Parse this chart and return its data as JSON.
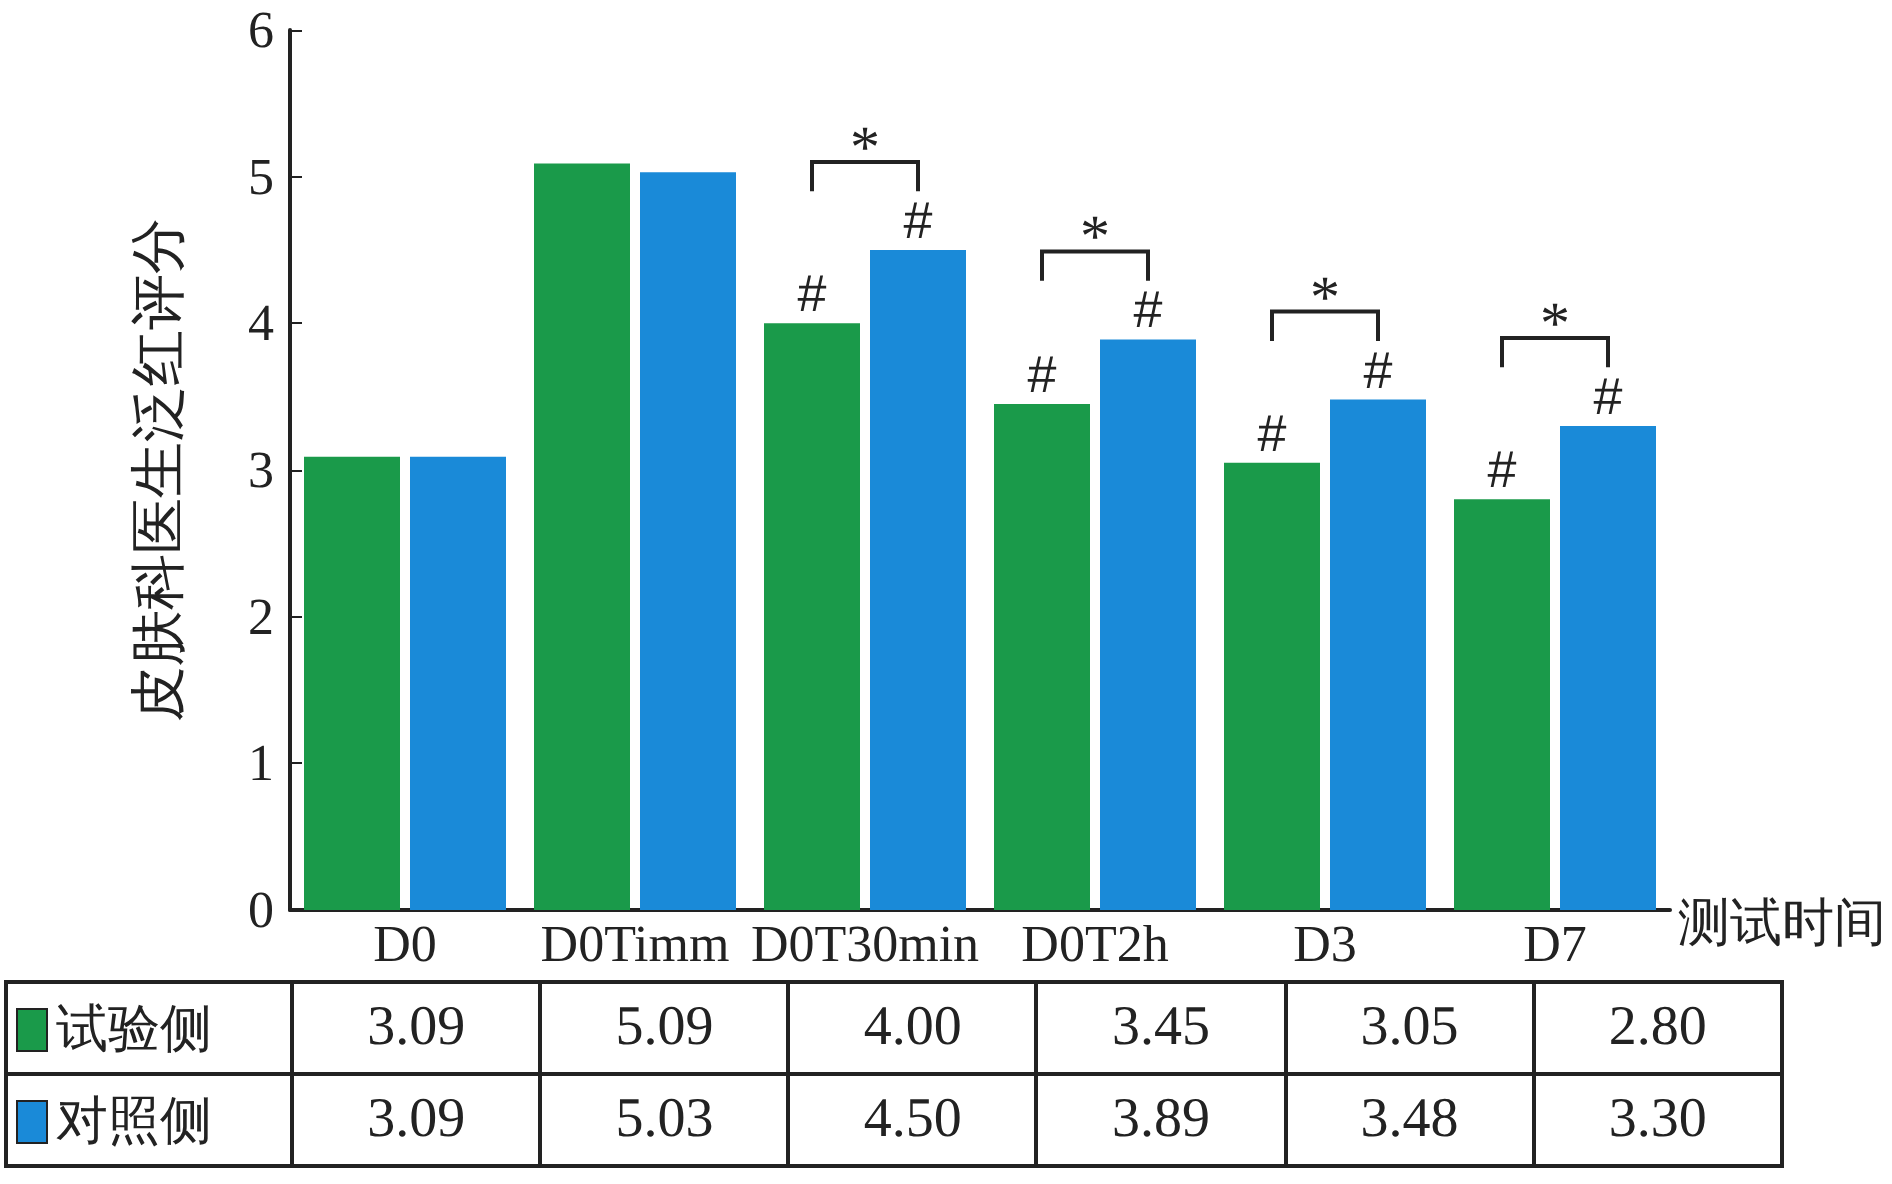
{
  "chart_data": {
    "type": "bar",
    "ylabel": "皮肤科医生泛红评分",
    "xlabel": "测试时间",
    "categories": [
      "D0",
      "D0Timm",
      "D0T30min",
      "D0T2h",
      "D3",
      "D7"
    ],
    "series": [
      {
        "name": "试验侧",
        "color": "#1a9a4a",
        "values": [
          3.09,
          5.09,
          4.0,
          3.45,
          3.05,
          2.8
        ],
        "value_labels": [
          "3.09",
          "5.09",
          "4.00",
          "3.45",
          "3.05",
          "2.80"
        ]
      },
      {
        "name": "对照侧",
        "color": "#1a8ad8",
        "values": [
          3.09,
          5.03,
          4.5,
          3.89,
          3.48,
          3.3
        ],
        "value_labels": [
          "3.09",
          "5.03",
          "4.50",
          "3.89",
          "3.48",
          "3.30"
        ]
      }
    ],
    "ylim": [
      0,
      6
    ],
    "yticks": [
      0,
      1,
      2,
      3,
      4,
      5,
      6
    ],
    "grid": false,
    "legend": "bottom",
    "annotations": [
      {
        "text": "#",
        "x": "D0T30min",
        "y": 4.0
      },
      {
        "text": "#",
        "x": "D0T30min",
        "y": 4.5
      },
      {
        "text": "#",
        "x": "D0T2h",
        "y": 3.45
      },
      {
        "text": "#",
        "x": "D0T2h",
        "y": 3.89
      },
      {
        "text": "#",
        "x": "D3",
        "y": 3.05
      },
      {
        "text": "#",
        "x": "D3",
        "y": 3.48
      },
      {
        "text": "#",
        "x": "D7",
        "y": 2.8
      },
      {
        "text": "#",
        "x": "D7",
        "y": 3.3
      },
      {
        "text": "*",
        "x": "D0T30min",
        "y": 4.5
      },
      {
        "text": "*",
        "x": "D0T2h",
        "y": 3.89
      },
      {
        "text": "*",
        "x": "D3",
        "y": 3.48
      },
      {
        "text": "*",
        "x": "D7",
        "y": 3.3
      }
    ]
  }
}
